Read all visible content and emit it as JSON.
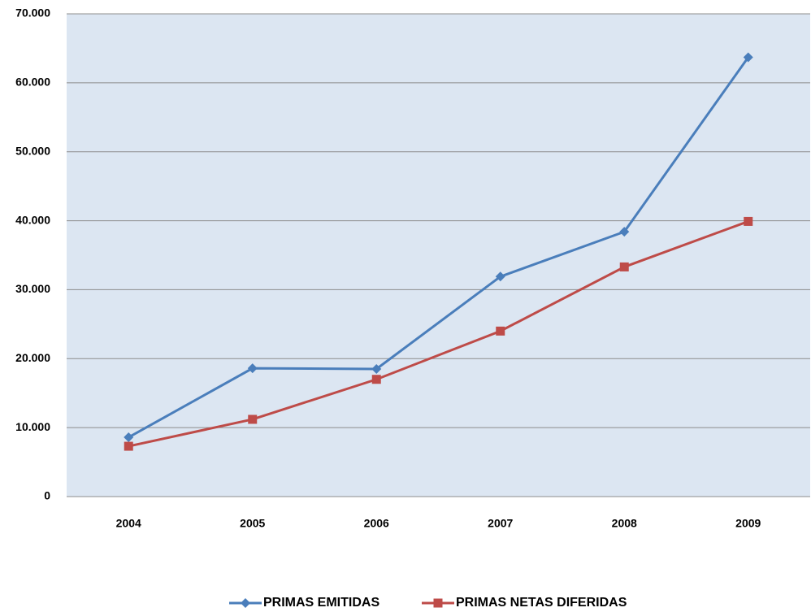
{
  "chart_data": {
    "type": "line",
    "categories": [
      "2004",
      "2005",
      "2006",
      "2007",
      "2008",
      "2009"
    ],
    "series": [
      {
        "name": "PRIMAS EMITIDAS",
        "color": "#4a7ebb",
        "marker": "diamond",
        "values": [
          8600,
          18600,
          18500,
          31900,
          38400,
          63700
        ]
      },
      {
        "name": "PRIMAS NETAS DIFERIDAS",
        "color": "#be4b48",
        "marker": "square",
        "values": [
          7300,
          11200,
          17000,
          24000,
          33300,
          39900
        ]
      }
    ],
    "ylim": [
      0,
      70000
    ],
    "yticks": [
      0,
      {
        "value": 10000,
        "label": "10.000"
      },
      {
        "value": 20000,
        "label": "20.000"
      },
      {
        "value": 30000,
        "label": "30.000"
      },
      {
        "value": 40000,
        "label": "40.000"
      },
      {
        "value": 50000,
        "label": "50.000"
      },
      {
        "value": 60000,
        "label": "60.000"
      },
      {
        "value": 70000,
        "label": "70.000"
      }
    ],
    "grid": true,
    "legend": "bottom"
  }
}
